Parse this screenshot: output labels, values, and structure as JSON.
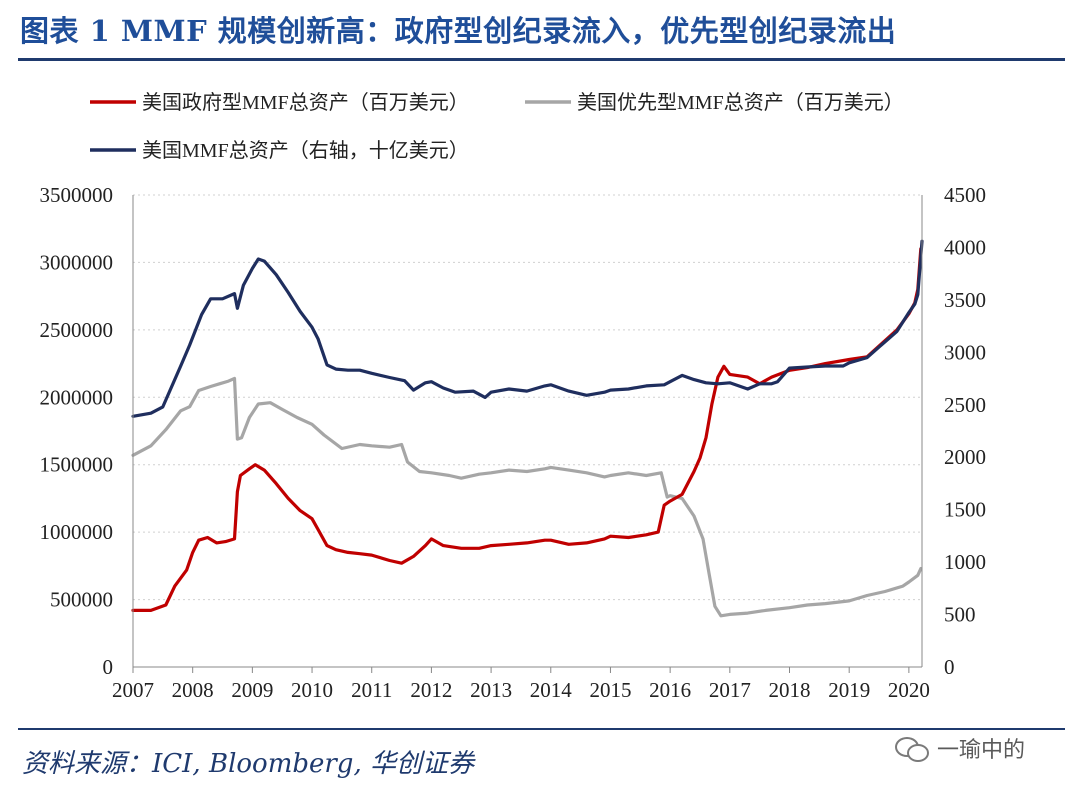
{
  "title": "图表 1   MMF 规模创新高：政府型创纪录流入，优先型创纪录流出",
  "source": "资料来源：ICI, Bloomberg, 华创证券",
  "watermark": "一瑜中的",
  "chart_data": {
    "type": "line",
    "x_ticks": [
      "2007",
      "2008",
      "2009",
      "2010",
      "2011",
      "2012",
      "2013",
      "2014",
      "2015",
      "2016",
      "2017",
      "2018",
      "2019",
      "2020"
    ],
    "xlim": [
      2007,
      2020.22
    ],
    "left_axis": {
      "ylim": [
        0,
        3500000
      ],
      "ticks": [
        "0",
        "500000",
        "1000000",
        "1500000",
        "2000000",
        "2500000",
        "3000000",
        "3500000"
      ]
    },
    "right_axis": {
      "ylim": [
        0,
        4500
      ],
      "ticks": [
        "0",
        "500",
        "1000",
        "1500",
        "2000",
        "2500",
        "3000",
        "3500",
        "4000",
        "4500"
      ]
    },
    "grid": "horizontal-dotted",
    "series": [
      {
        "name": "美国政府型MMF总资产（百万美元）",
        "axis": "left",
        "color": "#c00000",
        "x": [
          2007,
          2007.3,
          2007.55,
          2007.7,
          2007.9,
          2008,
          2008.1,
          2008.25,
          2008.4,
          2008.55,
          2008.7,
          2008.75,
          2008.8,
          2008.95,
          2009.05,
          2009.2,
          2009.4,
          2009.6,
          2009.8,
          2010,
          2010.1,
          2010.25,
          2010.4,
          2010.6,
          2010.8,
          2011,
          2011.3,
          2011.5,
          2011.7,
          2011.9,
          2012,
          2012.2,
          2012.5,
          2012.8,
          2013,
          2013.3,
          2013.6,
          2013.9,
          2014,
          2014.3,
          2014.6,
          2014.9,
          2015,
          2015.3,
          2015.6,
          2015.8,
          2015.9,
          2016,
          2016.2,
          2016.4,
          2016.5,
          2016.6,
          2016.7,
          2016.8,
          2016.9,
          2017,
          2017.3,
          2017.5,
          2017.7,
          2018,
          2018.3,
          2018.6,
          2019,
          2019.3,
          2019.5,
          2019.8,
          2020,
          2020.1,
          2020.15,
          2020.2
        ],
        "values": [
          420000,
          420000,
          460000,
          600000,
          720000,
          850000,
          940000,
          960000,
          920000,
          930000,
          950000,
          1300000,
          1420000,
          1470000,
          1500000,
          1460000,
          1360000,
          1250000,
          1160000,
          1100000,
          1020000,
          900000,
          870000,
          850000,
          840000,
          830000,
          790000,
          770000,
          820000,
          900000,
          950000,
          900000,
          880000,
          880000,
          900000,
          910000,
          920000,
          940000,
          940000,
          910000,
          920000,
          950000,
          970000,
          960000,
          980000,
          1000000,
          1200000,
          1230000,
          1280000,
          1450000,
          1550000,
          1700000,
          1950000,
          2150000,
          2230000,
          2170000,
          2150000,
          2100000,
          2150000,
          2200000,
          2220000,
          2250000,
          2280000,
          2300000,
          2380000,
          2500000,
          2620000,
          2700000,
          2800000,
          3100000
        ]
      },
      {
        "name": "美国优先型MMF总资产（百万美元）",
        "axis": "left",
        "color": "#a6a6a6",
        "x": [
          2007,
          2007.3,
          2007.55,
          2007.8,
          2007.95,
          2008.1,
          2008.3,
          2008.45,
          2008.6,
          2008.7,
          2008.75,
          2008.82,
          2008.95,
          2009.1,
          2009.3,
          2009.5,
          2009.75,
          2010,
          2010.2,
          2010.5,
          2010.8,
          2011,
          2011.3,
          2011.5,
          2011.6,
          2011.8,
          2012,
          2012.3,
          2012.5,
          2012.8,
          2013,
          2013.3,
          2013.6,
          2013.9,
          2014,
          2014.3,
          2014.6,
          2014.9,
          2015,
          2015.3,
          2015.6,
          2015.85,
          2015.95,
          2016,
          2016.2,
          2016.4,
          2016.55,
          2016.65,
          2016.75,
          2016.85,
          2017,
          2017.3,
          2017.6,
          2018,
          2018.3,
          2018.6,
          2019,
          2019.3,
          2019.6,
          2019.9,
          2020,
          2020.15,
          2020.2
        ],
        "values": [
          1570000,
          1640000,
          1760000,
          1900000,
          1930000,
          2050000,
          2080000,
          2100000,
          2120000,
          2140000,
          1690000,
          1700000,
          1850000,
          1950000,
          1960000,
          1910000,
          1850000,
          1800000,
          1720000,
          1620000,
          1650000,
          1640000,
          1630000,
          1650000,
          1520000,
          1450000,
          1440000,
          1420000,
          1400000,
          1430000,
          1440000,
          1460000,
          1450000,
          1470000,
          1480000,
          1460000,
          1440000,
          1410000,
          1420000,
          1440000,
          1420000,
          1440000,
          1260000,
          1270000,
          1250000,
          1120000,
          950000,
          700000,
          450000,
          380000,
          390000,
          400000,
          420000,
          440000,
          460000,
          470000,
          490000,
          530000,
          560000,
          600000,
          630000,
          680000,
          730000
        ]
      },
      {
        "name": "美国MMF总资产（右轴，十亿美元）",
        "axis": "right",
        "color": "#1f2e5e",
        "x": [
          2007,
          2007.3,
          2007.5,
          2007.8,
          2007.95,
          2008.15,
          2008.3,
          2008.5,
          2008.7,
          2008.75,
          2008.85,
          2009,
          2009.1,
          2009.2,
          2009.4,
          2009.6,
          2009.8,
          2010,
          2010.1,
          2010.25,
          2010.4,
          2010.6,
          2010.8,
          2011,
          2011.3,
          2011.55,
          2011.7,
          2011.9,
          2012,
          2012.2,
          2012.4,
          2012.7,
          2012.9,
          2013,
          2013.3,
          2013.6,
          2013.9,
          2014,
          2014.3,
          2014.6,
          2014.9,
          2015,
          2015.3,
          2015.6,
          2015.9,
          2016,
          2016.2,
          2016.4,
          2016.6,
          2016.8,
          2017,
          2017.3,
          2017.5,
          2017.7,
          2017.8,
          2018,
          2018.3,
          2018.6,
          2018.9,
          2019,
          2019.3,
          2019.5,
          2019.8,
          2020,
          2020.1,
          2020.15,
          2020.22
        ],
        "values": [
          2390,
          2420,
          2480,
          2870,
          3070,
          3360,
          3510,
          3510,
          3560,
          3420,
          3640,
          3800,
          3890,
          3870,
          3740,
          3570,
          3390,
          3240,
          3130,
          2880,
          2840,
          2830,
          2830,
          2800,
          2760,
          2730,
          2640,
          2710,
          2720,
          2660,
          2620,
          2630,
          2570,
          2620,
          2650,
          2630,
          2680,
          2690,
          2630,
          2590,
          2620,
          2640,
          2650,
          2680,
          2690,
          2720,
          2780,
          2740,
          2710,
          2700,
          2710,
          2650,
          2700,
          2700,
          2720,
          2850,
          2860,
          2870,
          2870,
          2900,
          2950,
          3050,
          3200,
          3380,
          3460,
          3550,
          4060
        ]
      }
    ]
  }
}
